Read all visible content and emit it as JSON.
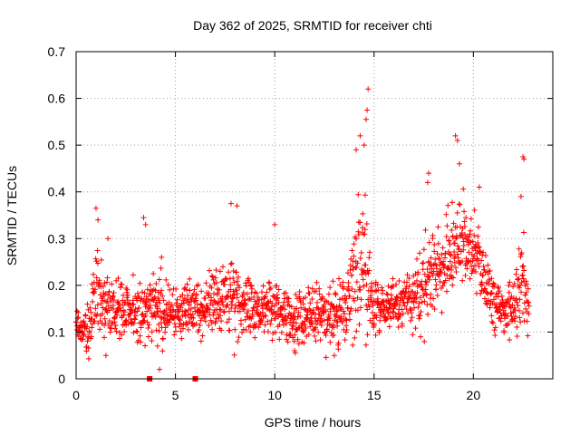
{
  "chart_data": {
    "type": "scatter",
    "title": "Day 362 of 2025, SRMTID for receiver chti",
    "xlabel": "GPS time / hours",
    "ylabel": "SRMTID / TECUs",
    "xlim": [
      0,
      24
    ],
    "ylim": [
      0,
      0.7
    ],
    "xticks": [
      0,
      5,
      10,
      15,
      20
    ],
    "yticks": [
      0,
      0.1,
      0.2,
      0.3,
      0.4,
      0.5,
      0.6,
      0.7
    ],
    "xtick_labels": [
      "0",
      "5",
      "10",
      "15",
      "20"
    ],
    "ytick_labels": [
      "0",
      "0.1",
      "0.2",
      "0.3",
      "0.4",
      "0.5",
      "0.6",
      "0.7"
    ],
    "grid": true,
    "marker": "plus",
    "color": "#ff0000",
    "envelope": {
      "x_hours": [
        0,
        0.3,
        0.6,
        1.0,
        1.5,
        2.0,
        2.5,
        3.0,
        3.5,
        4.0,
        4.5,
        5.0,
        5.5,
        6.0,
        6.5,
        7.0,
        7.5,
        8.0,
        8.5,
        9.0,
        9.5,
        10.0,
        10.5,
        11.0,
        11.5,
        12.0,
        12.5,
        13.0,
        13.5,
        14.0,
        14.5,
        15.0,
        15.5,
        16.0,
        16.5,
        17.0,
        17.5,
        18.0,
        18.5,
        19.0,
        19.5,
        20.0,
        20.5,
        21.0,
        21.5,
        22.0,
        22.5,
        22.8
      ],
      "median": [
        0.12,
        0.09,
        0.11,
        0.19,
        0.15,
        0.14,
        0.15,
        0.14,
        0.16,
        0.15,
        0.14,
        0.15,
        0.14,
        0.16,
        0.15,
        0.17,
        0.18,
        0.17,
        0.15,
        0.15,
        0.14,
        0.15,
        0.14,
        0.13,
        0.14,
        0.14,
        0.13,
        0.13,
        0.15,
        0.22,
        0.25,
        0.15,
        0.15,
        0.16,
        0.16,
        0.17,
        0.2,
        0.23,
        0.25,
        0.28,
        0.3,
        0.28,
        0.24,
        0.16,
        0.15,
        0.15,
        0.22,
        0.15
      ],
      "spread": [
        0.04,
        0.03,
        0.05,
        0.07,
        0.06,
        0.05,
        0.05,
        0.05,
        0.06,
        0.06,
        0.05,
        0.05,
        0.05,
        0.05,
        0.05,
        0.05,
        0.06,
        0.07,
        0.05,
        0.05,
        0.05,
        0.05,
        0.05,
        0.05,
        0.05,
        0.05,
        0.05,
        0.05,
        0.06,
        0.11,
        0.13,
        0.05,
        0.04,
        0.04,
        0.04,
        0.05,
        0.07,
        0.07,
        0.07,
        0.08,
        0.08,
        0.07,
        0.07,
        0.05,
        0.04,
        0.05,
        0.09,
        0.04
      ]
    },
    "peaks": [
      {
        "x": 1.0,
        "y": 0.365
      },
      {
        "x": 1.1,
        "y": 0.34
      },
      {
        "x": 1.6,
        "y": 0.3
      },
      {
        "x": 3.4,
        "y": 0.345
      },
      {
        "x": 3.5,
        "y": 0.33
      },
      {
        "x": 4.3,
        "y": 0.26
      },
      {
        "x": 7.8,
        "y": 0.375
      },
      {
        "x": 8.1,
        "y": 0.37
      },
      {
        "x": 10.0,
        "y": 0.33
      },
      {
        "x": 14.1,
        "y": 0.49
      },
      {
        "x": 14.3,
        "y": 0.52
      },
      {
        "x": 14.5,
        "y": 0.5
      },
      {
        "x": 14.7,
        "y": 0.62
      },
      {
        "x": 14.65,
        "y": 0.575
      },
      {
        "x": 14.6,
        "y": 0.555
      },
      {
        "x": 17.7,
        "y": 0.42
      },
      {
        "x": 17.75,
        "y": 0.44
      },
      {
        "x": 19.1,
        "y": 0.52
      },
      {
        "x": 19.2,
        "y": 0.51
      },
      {
        "x": 19.3,
        "y": 0.46
      },
      {
        "x": 20.3,
        "y": 0.41
      },
      {
        "x": 22.5,
        "y": 0.475
      },
      {
        "x": 22.55,
        "y": 0.47
      },
      {
        "x": 22.4,
        "y": 0.39
      }
    ],
    "outliers": [
      {
        "x": 4.2,
        "y": 0.02
      },
      {
        "x": 4.1,
        "y": 0.07
      },
      {
        "x": 13.0,
        "y": 0.05
      },
      {
        "x": 1.5,
        "y": 0.05
      },
      {
        "x": 11.0,
        "y": 0.06
      }
    ],
    "zero_markers": [
      {
        "x": 3.7,
        "y": 0
      },
      {
        "x": 6.0,
        "y": 0
      }
    ]
  }
}
